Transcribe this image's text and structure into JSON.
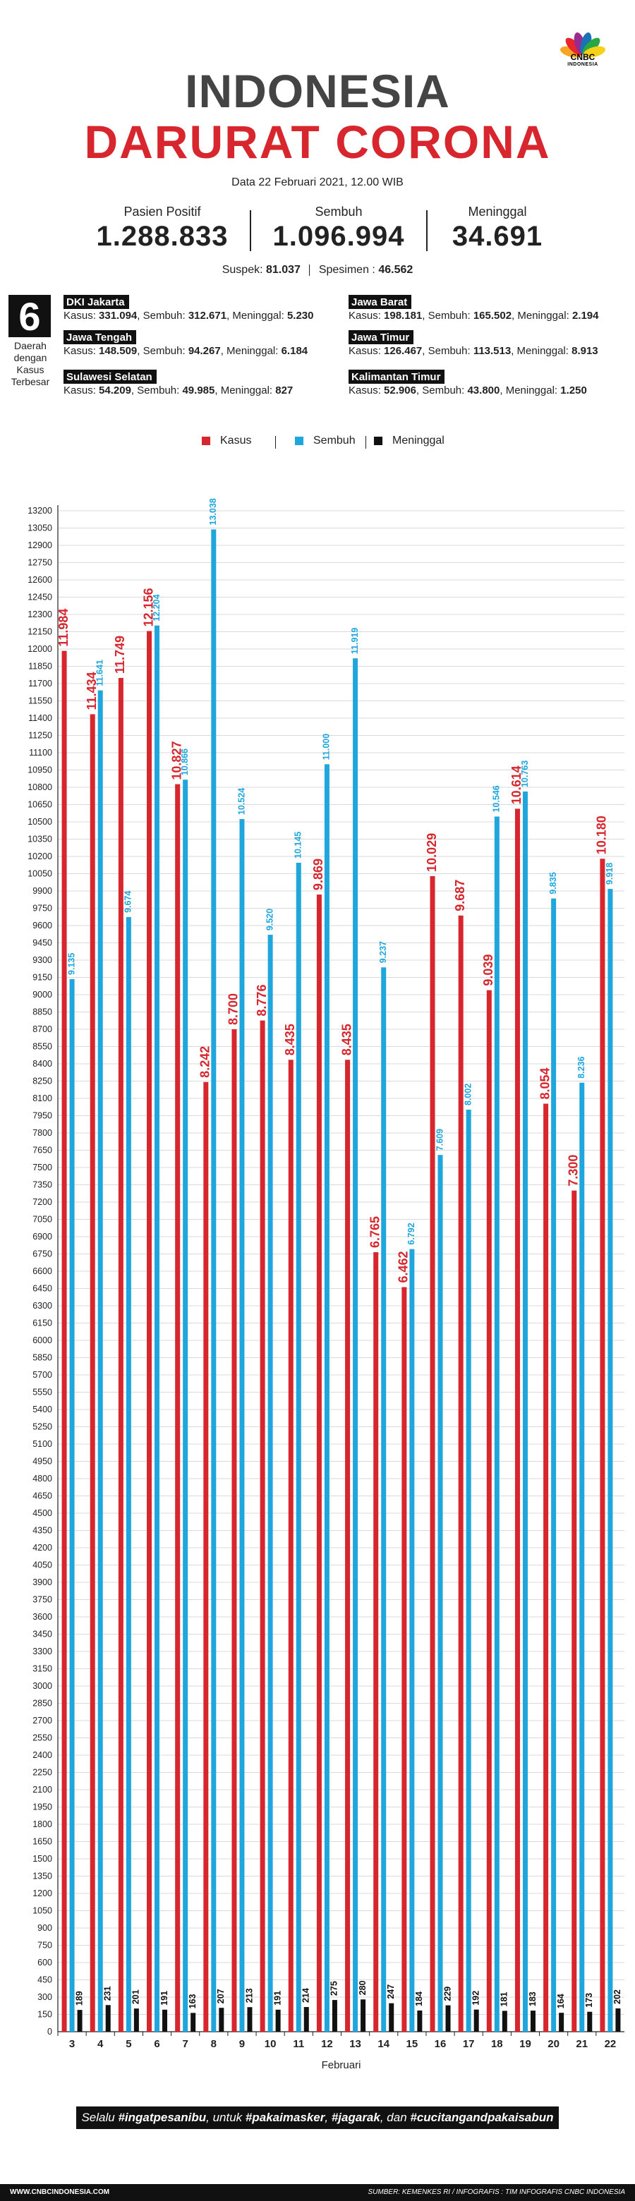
{
  "brand": {
    "name": "CNBC",
    "sub": "INDONESIA"
  },
  "header": {
    "title_line1": "INDONESIA",
    "title_line2": "DARURAT CORONA",
    "subtitle": "Data 22 Februari 2021, 12.00 WIB"
  },
  "stats": [
    {
      "label": "Pasien Positif",
      "value": "1.288.833"
    },
    {
      "label": "Sembuh",
      "value": "1.096.994"
    },
    {
      "label": "Meninggal",
      "value": "34.691"
    }
  ],
  "suspek": {
    "label": "Suspek:",
    "value": "81.037",
    "spesimen_label": "Spesimen :",
    "spesimen_value": "46.562"
  },
  "regions_header": {
    "number": "6",
    "caption": "Daerah dengan Kasus Terbesar"
  },
  "regions": [
    {
      "name": "DKI Jakarta",
      "kasus": "331.094",
      "sembuh": "312.671",
      "meninggal": "5.230"
    },
    {
      "name": "Jawa Barat",
      "kasus": "198.181",
      "sembuh": "165.502",
      "meninggal": "2.194"
    },
    {
      "name": "Jawa Tengah",
      "kasus": "148.509",
      "sembuh": "94.267",
      "meninggal": "6.184"
    },
    {
      "name": "Jawa Timur",
      "kasus": "126.467",
      "sembuh": "113.513",
      "meninggal": "8.913"
    },
    {
      "name": "Sulawesi Selatan",
      "kasus": "54.209",
      "sembuh": "49.985",
      "meninggal": "827"
    },
    {
      "name": "Kalimantan Timur",
      "kasus": "52.906",
      "sembuh": "43.800",
      "meninggal": "1.250"
    }
  ],
  "region_labels": {
    "kasus": "Kasus:",
    "sembuh": "Sembuh:",
    "meninggal": "Meninggal:"
  },
  "legend": {
    "kasus": "Kasus",
    "sembuh": "Sembuh",
    "meninggal": "Meninggal"
  },
  "colors": {
    "kasus": "#d7262d",
    "sembuh": "#1ea6dd",
    "meninggal": "#111111",
    "title_gray": "#444444"
  },
  "chart_data": {
    "type": "bar",
    "categories": [
      "3",
      "4",
      "5",
      "6",
      "7",
      "8",
      "9",
      "10",
      "11",
      "12",
      "13",
      "14",
      "15",
      "16",
      "17",
      "18",
      "19",
      "20",
      "21",
      "22"
    ],
    "series": [
      {
        "name": "Kasus",
        "values": [
          11984,
          11434,
          11749,
          12156,
          10827,
          8242,
          8700,
          8776,
          8435,
          9869,
          8435,
          6765,
          6462,
          10029,
          9687,
          9039,
          10614,
          8054,
          7300,
          10180
        ],
        "labels": [
          "11.984",
          "11.434",
          "11.749",
          "12.156",
          "10.827",
          "8.242",
          "8.700",
          "8.776",
          "8.435",
          "9.869",
          "8.435",
          "6.765",
          "6.462",
          "10.029",
          "9.687",
          "9.039",
          "10.614",
          "8.054",
          "7.300",
          "10.180"
        ]
      },
      {
        "name": "Sembuh",
        "values": [
          9135,
          11641,
          9674,
          12204,
          10866,
          13038,
          10524,
          9520,
          10145,
          11000,
          11919,
          9237,
          6792,
          7609,
          8002,
          10546,
          10763,
          9835,
          8236,
          9918
        ],
        "labels": [
          "9.135",
          "11.641",
          "9.674",
          "12.204",
          "10.866",
          "13.038",
          "10.524",
          "9.520",
          "10.145",
          "11.000",
          "11.919",
          "9.237",
          "6.792",
          "7.609",
          "8.002",
          "10.546",
          "10.763",
          "9.835",
          "8.236",
          "9.918"
        ]
      },
      {
        "name": "Meninggal",
        "values": [
          189,
          231,
          201,
          191,
          163,
          207,
          213,
          191,
          214,
          275,
          280,
          247,
          184,
          229,
          192,
          181,
          183,
          164,
          173,
          202
        ],
        "labels": [
          "189",
          "231",
          "201",
          "191",
          "163",
          "207",
          "213",
          "191",
          "214",
          "275",
          "280",
          "247",
          "184",
          "229",
          "192",
          "181",
          "183",
          "164",
          "173",
          "202"
        ]
      }
    ],
    "xlabel": "Februari",
    "ylabel": "",
    "ylim": [
      0,
      13200
    ],
    "ytick_step": 150,
    "grid": true,
    "legend_position": "top-center"
  },
  "banner": {
    "prefix": "Selalu ",
    "b1": "#ingatpesanibu",
    "mid1": ", untuk ",
    "b2": "#pakaimasker",
    "mid2": ", ",
    "b3": "#jagarak",
    "mid3": ", dan ",
    "b4": "#cucitangandpakaisabun"
  },
  "footer": {
    "left": "WWW.CNBCINDONESIA.COM",
    "right": "SUMBER: KEMENKES RI / INFOGRAFIS : TIM INFOGRAFIS CNBC INDONESIA"
  }
}
